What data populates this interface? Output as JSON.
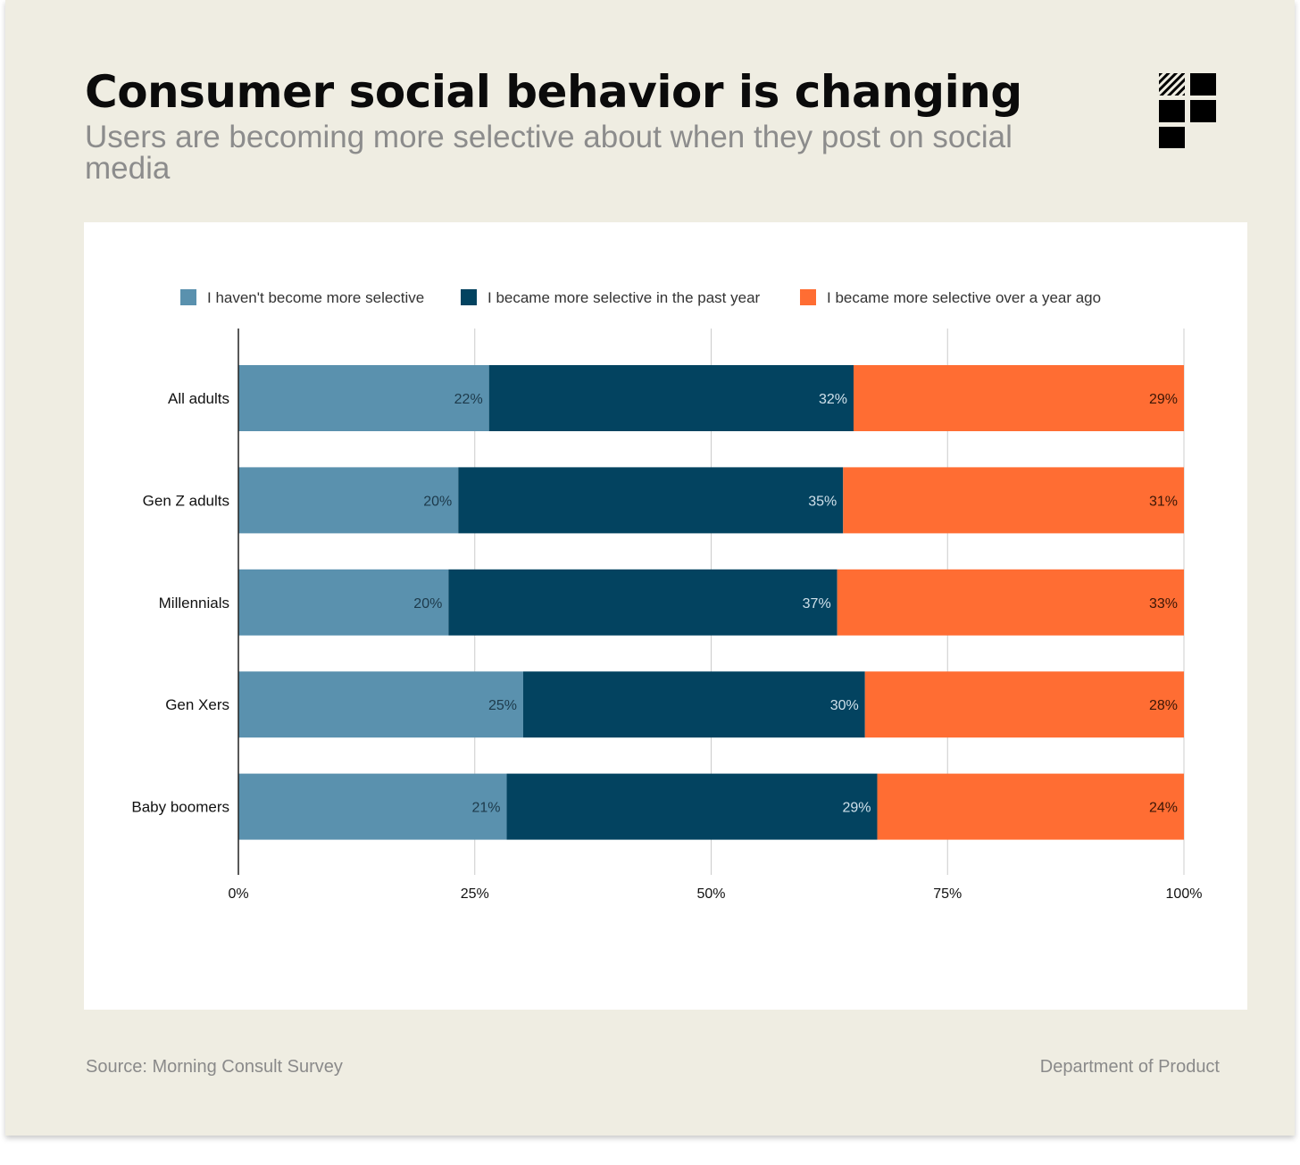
{
  "header": {
    "title": "Consumer social behavior is changing",
    "subtitle": "Users are becoming more selective about when they post on social media"
  },
  "footer": {
    "source": "Source: Morning Consult Survey",
    "credit": "Department of Product"
  },
  "colors": {
    "card_background": "#efede2",
    "chart_background": "#ffffff",
    "series_1": "#5a91ae",
    "series_2": "#034360",
    "series_3": "#ff6d33"
  },
  "logo": {
    "icon": "grid-blocks-logo-icon"
  },
  "chart_data": {
    "type": "bar",
    "orientation": "horizontal",
    "stacked": true,
    "normalized": true,
    "title": "",
    "xlabel": "",
    "ylabel": "",
    "xlim": [
      0,
      100
    ],
    "xticks": [
      "0%",
      "25%",
      "50%",
      "75%",
      "100%"
    ],
    "grid": true,
    "legend_position": "top",
    "categories": [
      "All adults",
      "Gen Z adults",
      "Millennials",
      "Gen Xers",
      "Baby boomers"
    ],
    "series": [
      {
        "name": "I haven't become more selective",
        "color": "#5a91ae",
        "label_color": "#1d3a4b",
        "values": [
          22,
          20,
          20,
          25,
          21
        ]
      },
      {
        "name": "I became more selective in the past year",
        "color": "#034360",
        "label_color": "#cfe0ea",
        "values": [
          32,
          35,
          37,
          30,
          29
        ]
      },
      {
        "name": "I became more selective over a year ago",
        "color": "#ff6d33",
        "label_color": "#3a1606",
        "values": [
          29,
          31,
          33,
          28,
          24
        ]
      }
    ],
    "value_labels": [
      [
        "22%",
        "20%",
        "20%",
        "25%",
        "21%"
      ],
      [
        "32%",
        "35%",
        "37%",
        "30%",
        "29%"
      ],
      [
        "29%",
        "31%",
        "33%",
        "28%",
        "24%"
      ]
    ]
  }
}
